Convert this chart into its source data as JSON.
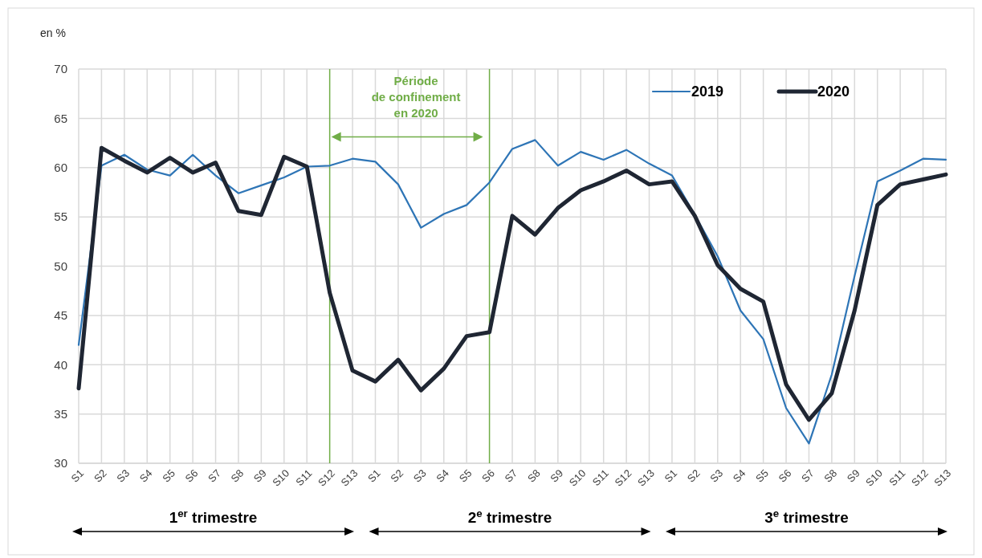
{
  "chart_data": {
    "type": "line",
    "ylabel": "en %",
    "categories": [
      "S1",
      "S2",
      "S3",
      "S4",
      "S5",
      "S6",
      "S7",
      "S8",
      "S9",
      "S10",
      "S11",
      "S12",
      "S13",
      "S1",
      "S2",
      "S3",
      "S4",
      "S5",
      "S6",
      "S7",
      "S8",
      "S9",
      "S10",
      "S11",
      "S12",
      "S13",
      "S1",
      "S2",
      "S3",
      "S4",
      "S5",
      "S6",
      "S7",
      "S8",
      "S9",
      "S10",
      "S11",
      "S12",
      "S13"
    ],
    "series": [
      {
        "name": "2019",
        "color": "#2e75b6",
        "values": [
          42,
          60.2,
          61.3,
          59.8,
          59.2,
          61.3,
          59.2,
          57.4,
          58.2,
          59,
          60.1,
          60.2,
          60.9,
          60.6,
          58.3,
          53.9,
          55.3,
          56.2,
          58.5,
          61.9,
          62.8,
          60.2,
          61.6,
          60.8,
          61.8,
          60.4,
          59.2,
          55.2,
          51,
          45.5,
          42.6,
          35.6,
          32,
          39,
          49,
          58.6,
          59.7,
          60.9,
          60.8
        ]
      },
      {
        "name": "2020",
        "color": "#1f2633",
        "values": [
          37.6,
          62,
          60.7,
          59.5,
          61,
          59.5,
          60.5,
          55.6,
          55.2,
          61.1,
          60.1,
          47.3,
          39.4,
          38.3,
          40.5,
          37.4,
          39.6,
          42.9,
          43.3,
          55.1,
          53.2,
          55.9,
          57.7,
          58.6,
          59.7,
          58.3,
          58.6,
          55.1,
          50.1,
          47.7,
          46.4,
          38,
          34.4,
          37.1,
          45.5,
          56.2,
          58.3,
          58.8,
          59.3
        ]
      }
    ],
    "ylim": [
      30,
      70
    ],
    "yticks": [
      30,
      35,
      40,
      45,
      50,
      55,
      60,
      65,
      70
    ],
    "grid": true,
    "legend": "top right",
    "annotations": [
      "Période de confinement en 2020",
      "1$^{er}$ trimestre",
      "2$^{e}$ trimestre",
      "3$^{e}$ trimestre"
    ]
  }
}
